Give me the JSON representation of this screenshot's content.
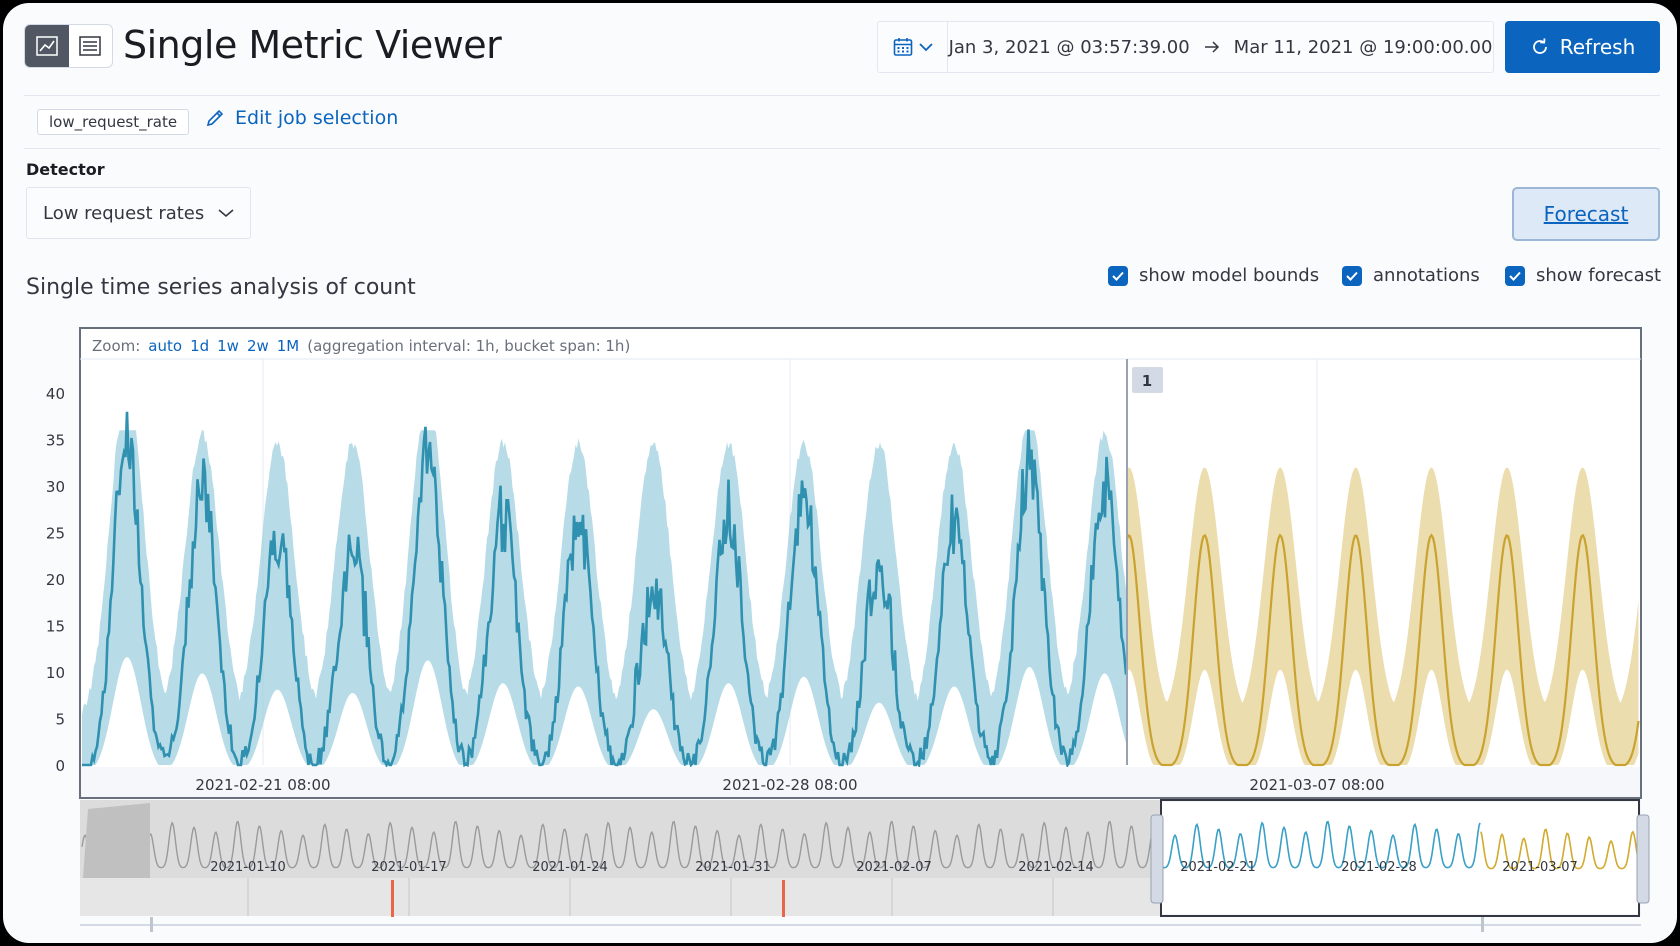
{
  "header": {
    "title": "Single Metric Viewer",
    "view_toggle": {
      "chart_icon": "chart-icon",
      "table_icon": "table-icon"
    },
    "date_range": {
      "start": "Jan 3, 2021 @ 03:57:39.00",
      "end": "Mar 11, 2021 @ 19:00:00.00"
    },
    "refresh_label": "Refresh"
  },
  "job": {
    "id": "low_request_rate",
    "edit_label": "Edit job selection"
  },
  "detector": {
    "label": "Detector",
    "value": "Low request rates"
  },
  "forecast_label": "Forecast",
  "section_title": "Single time series analysis of count",
  "toggles": [
    {
      "label": "show model bounds",
      "checked": true
    },
    {
      "label": "annotations",
      "checked": true
    },
    {
      "label": "show forecast",
      "checked": true
    }
  ],
  "zoom": {
    "label": "Zoom:",
    "options": [
      "auto",
      "1d",
      "1w",
      "2w",
      "1M"
    ],
    "info": "(aggregation interval: 1h, bucket span: 1h)"
  },
  "chart_data": {
    "type": "line",
    "y_ticks": [
      "0",
      "5",
      "10",
      "15",
      "20",
      "25",
      "30",
      "35",
      "40"
    ],
    "ylim": [
      0,
      40
    ],
    "x_tick_labels": [
      "2021-02-21 08:00",
      "2021-02-28 08:00",
      "2021-03-07 08:00"
    ],
    "annotation_label": "1",
    "series": [
      {
        "name": "count",
        "color": "#3090b0",
        "peaks": [
          36,
          31,
          26,
          25,
          35,
          28,
          27,
          20,
          28,
          30,
          22,
          27,
          33,
          31,
          28
        ]
      },
      {
        "name": "model bounds",
        "color": "#9fd0df"
      },
      {
        "name": "forecast",
        "color": "#c9a230",
        "peak": 25,
        "upper": 32
      }
    ],
    "context_tick_labels": [
      "2021-01-10",
      "2021-01-17",
      "2021-01-24",
      "2021-01-31",
      "2021-02-07",
      "2021-02-14",
      "2021-02-21",
      "2021-02-28",
      "2021-03-07"
    ]
  },
  "colors": {
    "primary": "#0b64be",
    "actual": "#3090b0",
    "bounds": "#9fd0df",
    "forecast": "#c9a230",
    "forecast_bounds": "#ead9a6"
  }
}
